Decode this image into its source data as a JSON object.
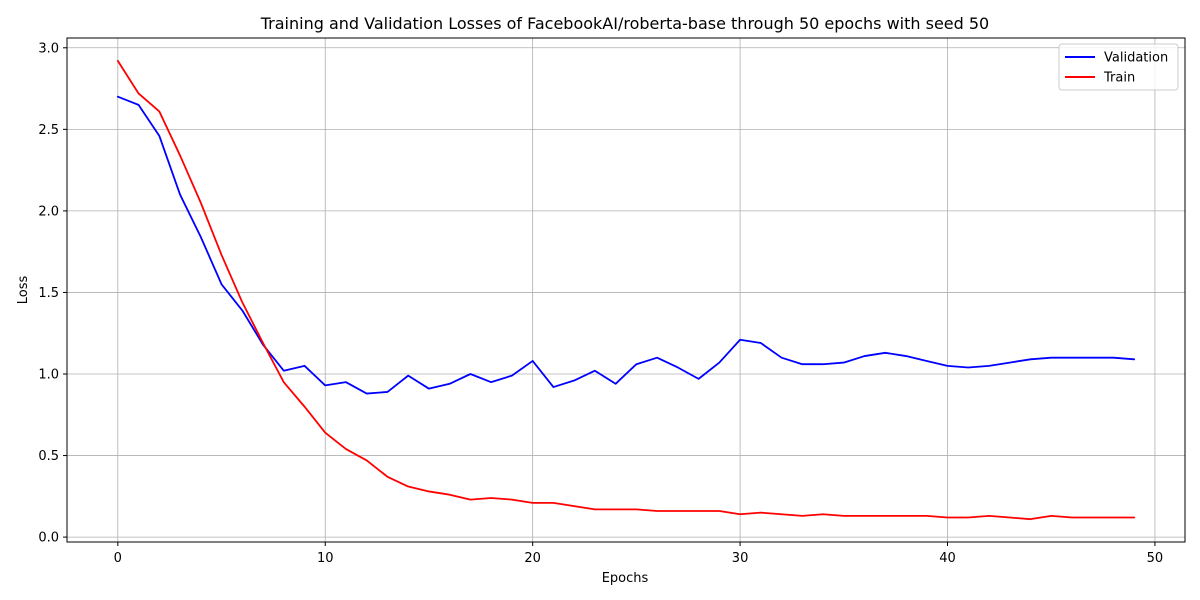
{
  "chart_data": {
    "type": "line",
    "title": "Training and Validation Losses of FacebookAI/roberta-base through 50 epochs with seed 50",
    "xlabel": "Epochs",
    "ylabel": "Loss",
    "xlim": [
      -2.45,
      51.45
    ],
    "ylim": [
      -0.03,
      3.06
    ],
    "xticks": [
      0,
      10,
      20,
      30,
      40,
      50
    ],
    "yticks": [
      0.0,
      0.5,
      1.0,
      1.5,
      2.0,
      2.5,
      3.0
    ],
    "xtick_labels": [
      "0",
      "10",
      "20",
      "30",
      "40",
      "50"
    ],
    "ytick_labels": [
      "0.0",
      "0.5",
      "1.0",
      "1.5",
      "2.0",
      "2.5",
      "3.0"
    ],
    "grid": true,
    "legend_position": "top-right",
    "x": [
      0,
      1,
      2,
      3,
      4,
      5,
      6,
      7,
      8,
      9,
      10,
      11,
      12,
      13,
      14,
      15,
      16,
      17,
      18,
      19,
      20,
      21,
      22,
      23,
      24,
      25,
      26,
      27,
      28,
      29,
      30,
      31,
      32,
      33,
      34,
      35,
      36,
      37,
      38,
      39,
      40,
      41,
      42,
      43,
      44,
      45,
      46,
      47,
      48,
      49
    ],
    "series": [
      {
        "name": "Validation",
        "color": "#0000ff",
        "values": [
          2.7,
          2.65,
          2.46,
          2.1,
          1.84,
          1.55,
          1.39,
          1.18,
          1.02,
          1.05,
          0.93,
          0.95,
          0.88,
          0.89,
          0.99,
          0.91,
          0.94,
          1.0,
          0.95,
          0.99,
          1.08,
          0.92,
          0.96,
          1.02,
          0.94,
          1.06,
          1.1,
          1.04,
          0.97,
          1.07,
          1.21,
          1.19,
          1.1,
          1.06,
          1.06,
          1.07,
          1.11,
          1.13,
          1.11,
          1.08,
          1.05,
          1.04,
          1.05,
          1.07,
          1.09,
          1.1,
          1.1,
          1.1,
          1.1,
          1.09
        ]
      },
      {
        "name": "Train",
        "color": "#ff0000",
        "values": [
          2.92,
          2.72,
          2.61,
          2.34,
          2.05,
          1.73,
          1.44,
          1.19,
          0.95,
          0.8,
          0.64,
          0.54,
          0.47,
          0.37,
          0.31,
          0.28,
          0.26,
          0.23,
          0.24,
          0.23,
          0.21,
          0.21,
          0.19,
          0.17,
          0.17,
          0.17,
          0.16,
          0.16,
          0.16,
          0.16,
          0.14,
          0.15,
          0.14,
          0.13,
          0.14,
          0.13,
          0.13,
          0.13,
          0.13,
          0.13,
          0.12,
          0.12,
          0.13,
          0.12,
          0.11,
          0.13,
          0.12,
          0.12,
          0.12,
          0.12
        ]
      }
    ]
  }
}
